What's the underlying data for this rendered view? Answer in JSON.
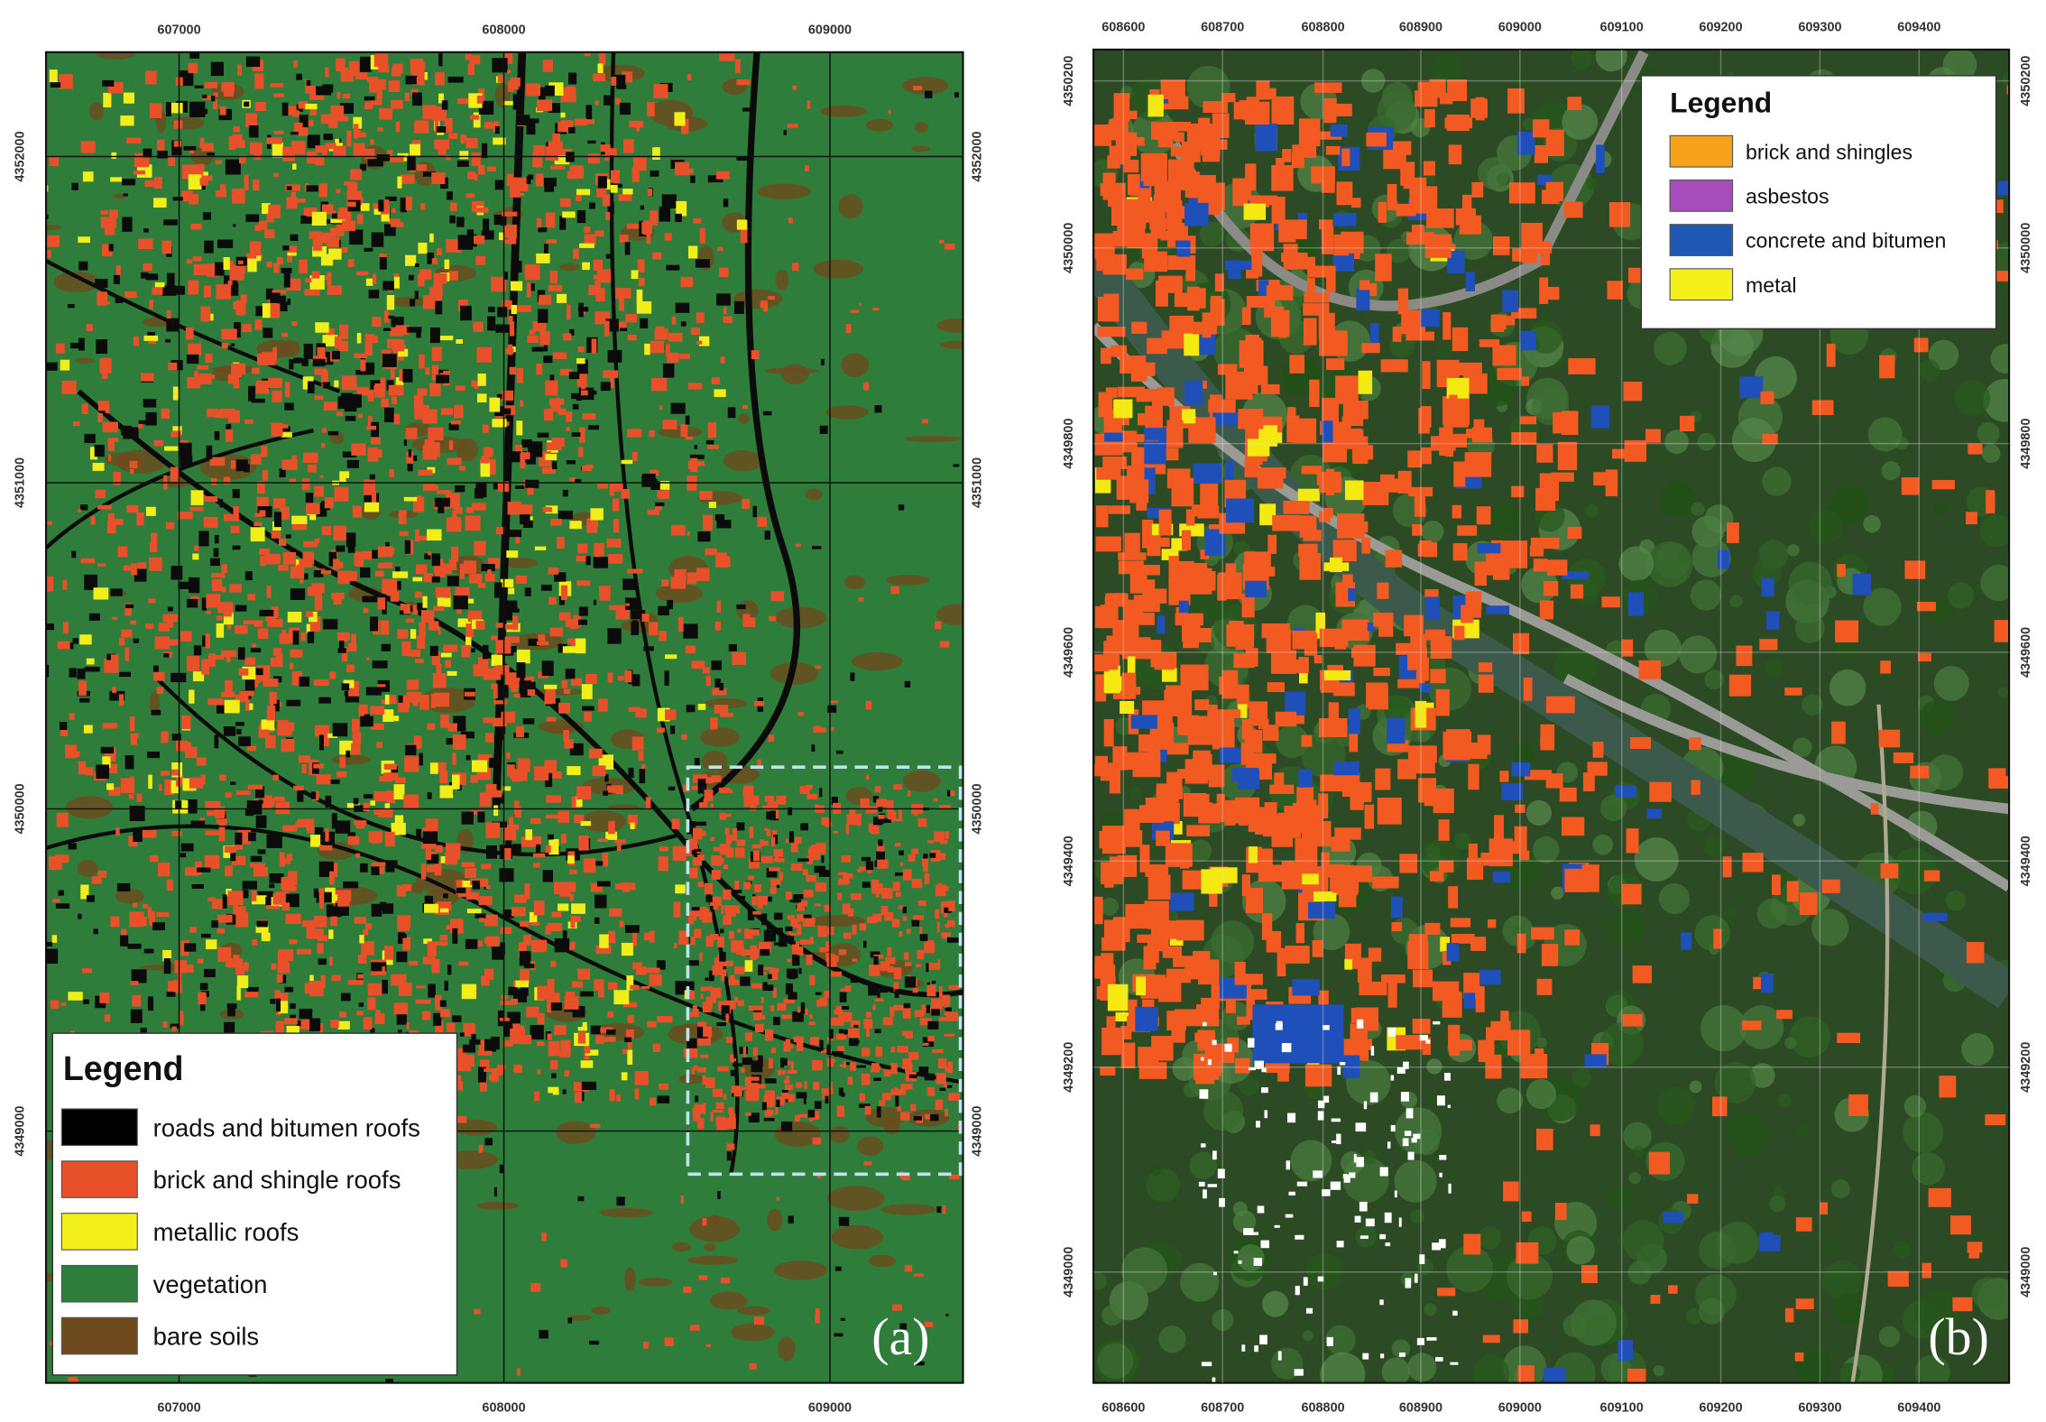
{
  "panel_a": {
    "label": "(a)",
    "x_ticks": [
      "607000",
      "608000",
      "609000"
    ],
    "y_ticks": [
      "4352000",
      "4351000",
      "4350000",
      "4349000"
    ],
    "legend": {
      "title": "Legend",
      "items": [
        "roads and bitumen roofs",
        "brick and shingle roofs",
        "metallic roofs",
        "vegetation",
        "bare soils"
      ]
    }
  },
  "panel_b": {
    "label": "(b)",
    "x_ticks": [
      "608600",
      "608700",
      "608800",
      "608900",
      "609000",
      "609100",
      "609200",
      "609300",
      "609400"
    ],
    "y_ticks": [
      "4350200",
      "4350000",
      "4349800",
      "4349600",
      "4349400",
      "4349200",
      "4349000"
    ],
    "legend": {
      "title": "Legend",
      "items": [
        "brick and shingles",
        "asbestos",
        "concrete and bitumen",
        "metal"
      ]
    }
  }
}
